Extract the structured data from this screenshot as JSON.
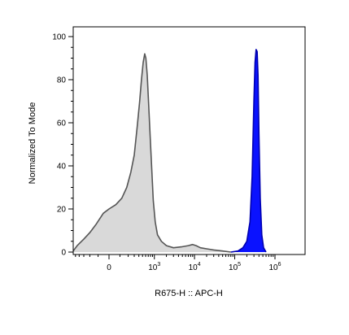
{
  "chart_data": {
    "type": "area",
    "title": "",
    "xlabel": "R675-H :: APC-H",
    "ylabel": "Normalized To Mode",
    "x_scale": "biexponential",
    "ylim": [
      0,
      100
    ],
    "y_ticks": [
      "0",
      "20",
      "40",
      "60",
      "80",
      "100"
    ],
    "x_ticks": [
      {
        "value": 0,
        "base": "0",
        "exp": ""
      },
      {
        "value": 1000,
        "base": "10",
        "exp": "3"
      },
      {
        "value": 10000,
        "base": "10",
        "exp": "4"
      },
      {
        "value": 100000,
        "base": "10",
        "exp": "5"
      },
      {
        "value": 1000000,
        "base": "10",
        "exp": "6"
      }
    ],
    "grid": false,
    "legend": "none",
    "series": [
      {
        "color": "#d9d9d9",
        "stroke": "#555555",
        "points": [
          [
            -600,
            0.5
          ],
          [
            -450,
            3
          ],
          [
            -300,
            6
          ],
          [
            -200,
            9
          ],
          [
            -120,
            13
          ],
          [
            -50,
            18
          ],
          [
            0,
            20
          ],
          [
            60,
            22
          ],
          [
            120,
            25
          ],
          [
            180,
            30
          ],
          [
            240,
            37
          ],
          [
            300,
            45
          ],
          [
            360,
            58
          ],
          [
            420,
            70
          ],
          [
            470,
            80
          ],
          [
            520,
            88
          ],
          [
            570,
            92
          ],
          [
            610,
            90
          ],
          [
            660,
            82
          ],
          [
            720,
            68
          ],
          [
            790,
            52
          ],
          [
            860,
            38
          ],
          [
            940,
            24
          ],
          [
            1050,
            14
          ],
          [
            1200,
            8
          ],
          [
            1500,
            5
          ],
          [
            2000,
            3
          ],
          [
            3000,
            2
          ],
          [
            5000,
            2.5
          ],
          [
            7000,
            3
          ],
          [
            9000,
            3.5
          ],
          [
            11000,
            3
          ],
          [
            14000,
            2
          ],
          [
            20000,
            1.5
          ],
          [
            30000,
            1
          ],
          [
            50000,
            0.5
          ],
          [
            80000,
            0
          ]
        ]
      },
      {
        "color": "#0a12ff",
        "stroke": "#0000b0",
        "points": [
          [
            80000,
            0
          ],
          [
            120000,
            0.5
          ],
          [
            160000,
            2
          ],
          [
            200000,
            5
          ],
          [
            240000,
            14
          ],
          [
            270000,
            35
          ],
          [
            300000,
            70
          ],
          [
            320000,
            88
          ],
          [
            340000,
            94
          ],
          [
            360000,
            93
          ],
          [
            380000,
            82
          ],
          [
            400000,
            55
          ],
          [
            430000,
            25
          ],
          [
            470000,
            8
          ],
          [
            520000,
            2
          ],
          [
            600000,
            0
          ]
        ]
      }
    ]
  }
}
